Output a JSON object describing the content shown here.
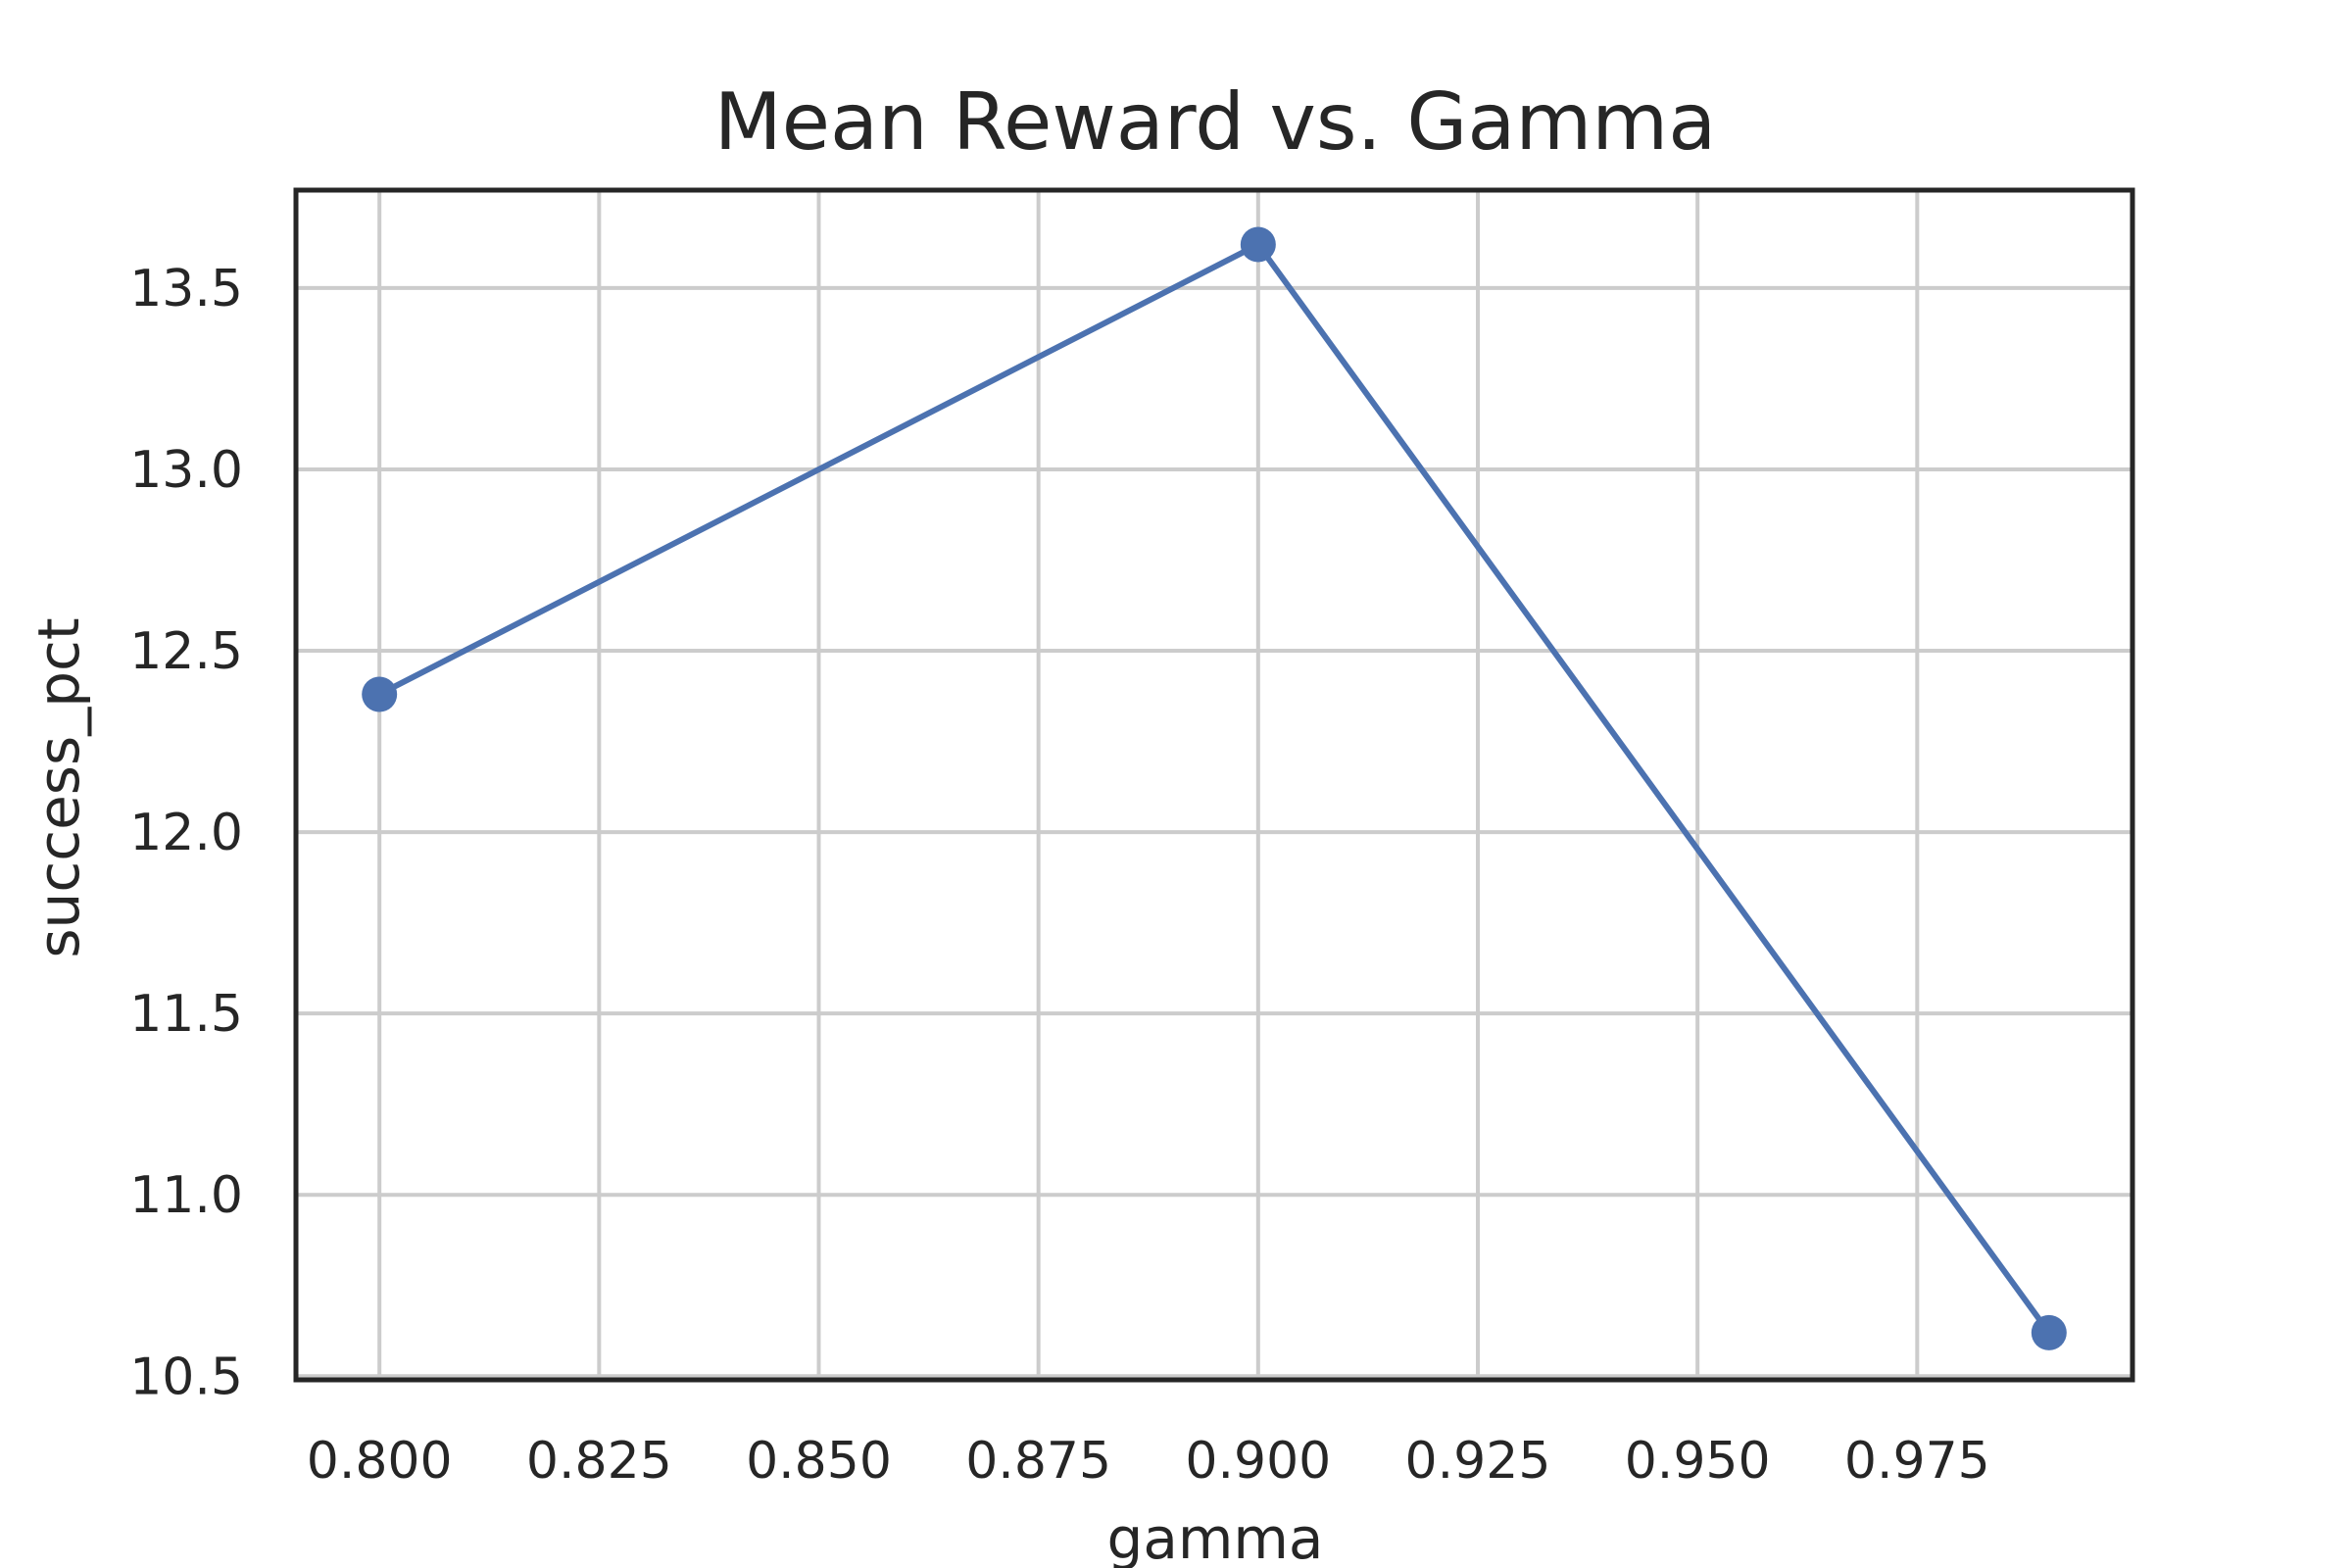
{
  "chart_data": {
    "type": "line",
    "title": "Mean Reward vs. Gamma",
    "xlabel": "gamma",
    "ylabel": "success_pct",
    "x": [
      0.8,
      0.9,
      0.99
    ],
    "series": [
      {
        "values": [
          12.38,
          13.62,
          10.62
        ]
      }
    ],
    "xlim": [
      0.7905,
      0.9995
    ],
    "ylim": [
      10.49,
      13.77
    ],
    "xticks": [
      0.8,
      0.825,
      0.85,
      0.875,
      0.9,
      0.925,
      0.95,
      0.975
    ],
    "xtick_labels": [
      "0.800",
      "0.825",
      "0.850",
      "0.875",
      "0.900",
      "0.925",
      "0.950",
      "0.975"
    ],
    "yticks": [
      10.5,
      11.0,
      11.5,
      12.0,
      12.5,
      13.0,
      13.5
    ],
    "ytick_labels": [
      "10.5",
      "11.0",
      "11.5",
      "12.0",
      "12.5",
      "13.0",
      "13.5"
    ],
    "grid": true,
    "line_color": "#4c72b0",
    "grid_color": "#cccccc",
    "frame_color": "#262626"
  }
}
